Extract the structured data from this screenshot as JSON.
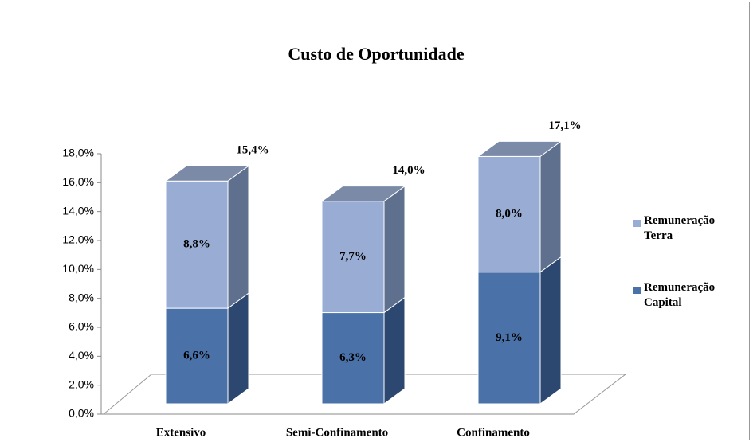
{
  "chart_data": {
    "type": "bar3d_stacked",
    "title": "Custo de Oportunidade",
    "categories": [
      "Extensivo",
      "Semi-Confinamento",
      "Confinamento"
    ],
    "series": [
      {
        "name": "Remuneração Capital",
        "color": "#4a72a8",
        "side_color": "#2c4870",
        "values": [
          6.6,
          6.3,
          9.1
        ],
        "value_labels": [
          "6,6%",
          "6,3%",
          "9,1%"
        ]
      },
      {
        "name": "Remuneração Terra",
        "color": "#98acd4",
        "side_color": "#5f6f8e",
        "values": [
          8.8,
          7.7,
          8.0
        ],
        "value_labels": [
          "8,8%",
          "7,7%",
          "8,0%"
        ]
      }
    ],
    "totals": {
      "values": [
        15.4,
        14.0,
        17.1
      ],
      "value_labels": [
        "15,4%",
        "14,0%",
        "17,1%"
      ]
    },
    "top_color": "#7b8aa6",
    "ylim": [
      0,
      18
    ],
    "yticks": [
      {
        "value": 0,
        "label": "0,0%"
      },
      {
        "value": 2,
        "label": "2,0%"
      },
      {
        "value": 4,
        "label": "4,0%"
      },
      {
        "value": 6,
        "label": "6,0%"
      },
      {
        "value": 8,
        "label": "8,0%"
      },
      {
        "value": 10,
        "label": "10,0%"
      },
      {
        "value": 12,
        "label": "12,0%"
      },
      {
        "value": 14,
        "label": "14,0%"
      },
      {
        "value": 16,
        "label": "16,0%"
      },
      {
        "value": 18,
        "label": "18,0%"
      }
    ],
    "legend": "right"
  }
}
